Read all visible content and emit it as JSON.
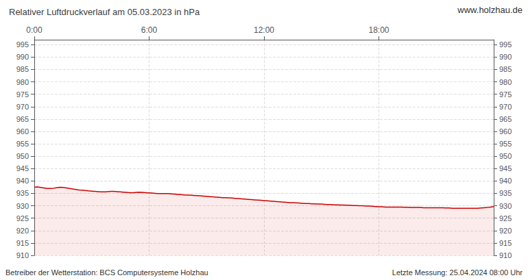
{
  "chart_data": {
    "type": "area",
    "title": "Relativer Luftdruckverlauf am 05.03.2023 in hPa",
    "annotations": [
      "www.holzhau.de",
      "Betreiber der Wetterstation: BCS Computersysteme Holzhau",
      "Letzte Messung: 25.04.2024 08:00 Uhr"
    ],
    "color": "#cc0000",
    "grid": true,
    "x": [
      0,
      10,
      20,
      30,
      40,
      50,
      60,
      70,
      80,
      90,
      100,
      110,
      120,
      130,
      140,
      150,
      160,
      170,
      180,
      190,
      200,
      210,
      220,
      230,
      240,
      250,
      260,
      270,
      280,
      290,
      300,
      310,
      320,
      330,
      340,
      350,
      360,
      370,
      380,
      390,
      400,
      410,
      420,
      430,
      440,
      450,
      460,
      470,
      480,
      490,
      500,
      510,
      520,
      530,
      540,
      550,
      560,
      570,
      580,
      590,
      600,
      610,
      620,
      630,
      640,
      650,
      660,
      670,
      680,
      690,
      700,
      710,
      720,
      730,
      740,
      750,
      760,
      770,
      780,
      790,
      800,
      810,
      820,
      830,
      840,
      850,
      860,
      870,
      880,
      890,
      900,
      910,
      920,
      930,
      940,
      950,
      960,
      970,
      980,
      990,
      1000,
      1010,
      1020,
      1030,
      1040,
      1050,
      1060,
      1070,
      1080,
      1090,
      1100,
      1110,
      1120,
      1130,
      1140,
      1150,
      1160,
      1170,
      1180,
      1190,
      1200,
      1210,
      1220,
      1230,
      1240,
      1250,
      1260,
      1270,
      1280,
      1290,
      1300,
      1310,
      1320,
      1330,
      1340,
      1350,
      1360,
      1370,
      1380,
      1390,
      1400,
      1410,
      1420,
      1430,
      1440
    ],
    "values": [
      937.5,
      937.6,
      937.4,
      937.2,
      937.0,
      937.0,
      937.1,
      937.3,
      937.5,
      937.4,
      937.2,
      937.0,
      936.8,
      936.6,
      936.4,
      936.3,
      936.2,
      936.0,
      935.9,
      935.8,
      935.7,
      935.6,
      935.6,
      935.7,
      935.8,
      935.8,
      935.7,
      935.6,
      935.5,
      935.4,
      935.3,
      935.3,
      935.4,
      935.5,
      935.4,
      935.3,
      935.2,
      935.1,
      935.0,
      934.9,
      934.9,
      934.9,
      934.9,
      934.8,
      934.7,
      934.6,
      934.5,
      934.4,
      934.3,
      934.3,
      934.2,
      934.1,
      934.0,
      933.9,
      933.8,
      933.7,
      933.6,
      933.5,
      933.4,
      933.3,
      933.3,
      933.2,
      933.1,
      933.0,
      932.9,
      932.8,
      932.7,
      932.6,
      932.5,
      932.4,
      932.3,
      932.2,
      932.1,
      932.0,
      931.9,
      931.8,
      931.7,
      931.6,
      931.5,
      931.4,
      931.3,
      931.3,
      931.2,
      931.1,
      931.0,
      930.9,
      930.9,
      930.8,
      930.8,
      930.7,
      930.7,
      930.6,
      930.5,
      930.5,
      930.4,
      930.4,
      930.3,
      930.3,
      930.2,
      930.2,
      930.1,
      930.1,
      930.0,
      930.0,
      929.9,
      929.9,
      929.8,
      929.7,
      929.6,
      929.6,
      929.5,
      929.5,
      929.5,
      929.5,
      929.5,
      929.5,
      929.4,
      929.4,
      929.3,
      929.3,
      929.3,
      929.3,
      929.2,
      929.2,
      929.2,
      929.2,
      929.2,
      929.2,
      929.2,
      929.1,
      929.1,
      929.0,
      929.0,
      929.0,
      929.0,
      929.0,
      929.0,
      929.0,
      929.0,
      929.0,
      929.1,
      929.2,
      929.3,
      929.5,
      929.7
    ],
    "xlim": [
      0,
      1440
    ],
    "xticks": [
      {
        "value": 0,
        "label": "0:00"
      },
      {
        "value": 360,
        "label": "6:00"
      },
      {
        "value": 720,
        "label": "12:00"
      },
      {
        "value": 1080,
        "label": "18:00"
      }
    ],
    "ylim": [
      910,
      997
    ],
    "yticks": [
      910,
      915,
      920,
      925,
      930,
      935,
      940,
      945,
      950,
      955,
      960,
      965,
      970,
      975,
      980,
      985,
      990,
      995
    ],
    "y2lim": [
      910,
      997
    ],
    "y2ticks": [
      910,
      915,
      920,
      925,
      930,
      935,
      940,
      945,
      950,
      955,
      960,
      965,
      970,
      975,
      980,
      985,
      990,
      995
    ]
  }
}
